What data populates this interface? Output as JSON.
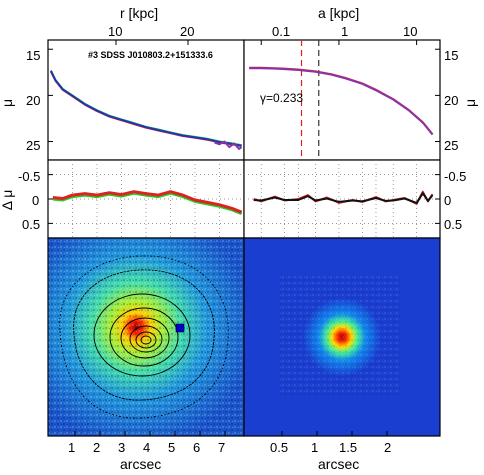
{
  "chart_data": [
    {
      "id": "profile-left",
      "type": "line",
      "annotation": "#3 SDSS J010803.2+151333.6",
      "top_axis_label": "r [kpc]",
      "top_axis_ticks": [
        "10",
        "20"
      ],
      "ylabel": "μ",
      "y_ticks": [
        "15",
        "20",
        "25"
      ],
      "ylim": [
        27,
        14
      ],
      "x_data_range": [
        0.1,
        8.0
      ],
      "series": [
        {
          "color": "#22cc22",
          "x": [
            0.12,
            0.3,
            0.6,
            1.0,
            1.5,
            2.0,
            2.5,
            3.0,
            3.5,
            4.0,
            4.5,
            5.0,
            5.5,
            6.0,
            6.5,
            7.0,
            7.5,
            7.9
          ],
          "values": [
            17.3,
            18.3,
            19.3,
            20.0,
            20.9,
            21.6,
            22.2,
            22.6,
            23.0,
            23.4,
            23.7,
            24.0,
            24.3,
            24.5,
            24.7,
            25.0,
            25.2,
            25.4
          ]
        },
        {
          "color": "#dd2222",
          "x": [
            0.12,
            0.3,
            0.6,
            1.0,
            1.5,
            2.0,
            2.5,
            3.0,
            3.5,
            4.0,
            4.5,
            5.0,
            5.5,
            6.0,
            6.5,
            7.0,
            7.5,
            7.9
          ],
          "values": [
            17.4,
            18.4,
            19.4,
            20.1,
            21.0,
            21.7,
            22.3,
            22.7,
            23.1,
            23.5,
            23.8,
            24.1,
            24.4,
            24.6,
            24.8,
            25.1,
            25.3,
            25.5
          ]
        },
        {
          "color": "#2233bb",
          "x": [
            0.12,
            0.3,
            0.6,
            1.0,
            1.5,
            2.0,
            2.5,
            3.0,
            3.5,
            4.0,
            4.5,
            5.0,
            5.5,
            6.0,
            6.5,
            7.0,
            7.5,
            7.9
          ],
          "values": [
            17.35,
            18.35,
            19.35,
            20.05,
            20.95,
            21.65,
            22.25,
            22.65,
            23.05,
            23.45,
            23.75,
            24.05,
            24.35,
            24.55,
            24.75,
            25.05,
            25.25,
            25.45
          ]
        },
        {
          "color": "#8833aa",
          "x": [
            6.8,
            7.0,
            7.2,
            7.4,
            7.6,
            7.8,
            7.9
          ],
          "values": [
            25.1,
            25.3,
            25.0,
            25.6,
            25.2,
            25.8,
            25.6
          ]
        }
      ]
    },
    {
      "id": "profile-right",
      "type": "line",
      "top_axis_label": "a [kpc]",
      "top_axis_ticks": [
        "0.1",
        "1",
        "10"
      ],
      "y_ticks": [
        "15",
        "20",
        "25"
      ],
      "ylim": [
        27,
        14
      ],
      "xscale": "log",
      "annotation": "γ=0.233",
      "vlines": [
        {
          "x": 0.33,
          "color": "#dd2222"
        },
        {
          "x": 0.55,
          "color": "#333333"
        }
      ],
      "series": [
        {
          "color": "#dd2222",
          "x": [
            0.07,
            0.1,
            0.15,
            0.2,
            0.3,
            0.5,
            0.8,
            1.2,
            2,
            3,
            5,
            8,
            12,
            16
          ],
          "values": [
            17.0,
            17.0,
            17.05,
            17.1,
            17.2,
            17.4,
            17.7,
            18.1,
            18.7,
            19.4,
            20.4,
            21.6,
            22.9,
            24.2
          ]
        },
        {
          "color": "#8833aa",
          "x": [
            0.07,
            0.1,
            0.15,
            0.2,
            0.3,
            0.5,
            0.8,
            1.2,
            2,
            3,
            5,
            8,
            12,
            16
          ],
          "values": [
            17.05,
            17.05,
            17.1,
            17.15,
            17.25,
            17.45,
            17.75,
            18.15,
            18.75,
            19.45,
            20.45,
            21.65,
            22.95,
            24.25
          ]
        }
      ]
    },
    {
      "id": "residual-left",
      "type": "line",
      "ylabel": "Δ μ",
      "y_ticks": [
        "-0.5",
        "0",
        "0.5"
      ],
      "ylim": [
        0.8,
        -0.8
      ],
      "x_data_range": [
        0.1,
        8.0
      ],
      "series": [
        {
          "color": "#22cc22",
          "x": [
            0.2,
            0.6,
            1.0,
            1.5,
            2.0,
            2.5,
            3.0,
            3.5,
            4.0,
            4.5,
            5.0,
            5.5,
            6.0,
            6.5,
            7.0,
            7.5,
            7.9
          ],
          "values": [
            0.0,
            0.02,
            -0.05,
            -0.08,
            -0.05,
            -0.1,
            -0.06,
            -0.12,
            -0.08,
            -0.05,
            -0.12,
            -0.05,
            0.05,
            0.1,
            0.15,
            0.22,
            0.3
          ]
        },
        {
          "color": "#dd2222",
          "x": [
            0.2,
            0.6,
            1.0,
            1.5,
            2.0,
            2.5,
            3.0,
            3.5,
            4.0,
            4.5,
            5.0,
            5.5,
            6.0,
            6.5,
            7.0,
            7.5,
            7.9
          ],
          "values": [
            -0.03,
            -0.01,
            -0.08,
            -0.11,
            -0.08,
            -0.13,
            -0.09,
            -0.15,
            -0.11,
            -0.08,
            -0.15,
            -0.08,
            0.02,
            0.07,
            0.12,
            0.19,
            0.27
          ]
        }
      ]
    },
    {
      "id": "residual-right",
      "type": "line",
      "y_ticks": [
        "-0.5",
        "0",
        "0.5"
      ],
      "ylim": [
        0.8,
        -0.8
      ],
      "series": [
        {
          "color": "#dd2222",
          "x": [
            0.08,
            0.1,
            0.15,
            0.2,
            0.3,
            0.4,
            0.5,
            0.7,
            1,
            1.5,
            2,
            3,
            4,
            5,
            7,
            10,
            12,
            14,
            16
          ],
          "values": [
            0.0,
            0.05,
            -0.05,
            0.03,
            0.0,
            -0.08,
            0.05,
            -0.03,
            0.08,
            0.02,
            0.06,
            -0.04,
            0.05,
            0.02,
            -0.02,
            0.1,
            -0.15,
            0.05,
            -0.1
          ]
        },
        {
          "color": "#111111",
          "x": [
            0.08,
            0.1,
            0.15,
            0.2,
            0.3,
            0.4,
            0.5,
            0.7,
            1,
            1.5,
            2,
            3,
            4,
            5,
            7,
            10,
            12,
            14,
            16
          ],
          "values": [
            0.02,
            0.03,
            -0.03,
            0.02,
            0.02,
            -0.06,
            0.03,
            -0.01,
            0.06,
            0.03,
            0.05,
            -0.02,
            0.04,
            0.03,
            -0.01,
            0.08,
            -0.12,
            0.04,
            -0.08
          ]
        }
      ]
    },
    {
      "id": "image-left",
      "type": "heatmap",
      "xlabel": "arcsec",
      "x_ticks": [
        "1",
        "2",
        "3",
        "4",
        "5",
        "6",
        "7"
      ]
    },
    {
      "id": "image-right",
      "type": "heatmap",
      "xlabel": "arcsec",
      "x_ticks": [
        "0.5",
        "1",
        "1.5",
        "2"
      ]
    }
  ]
}
